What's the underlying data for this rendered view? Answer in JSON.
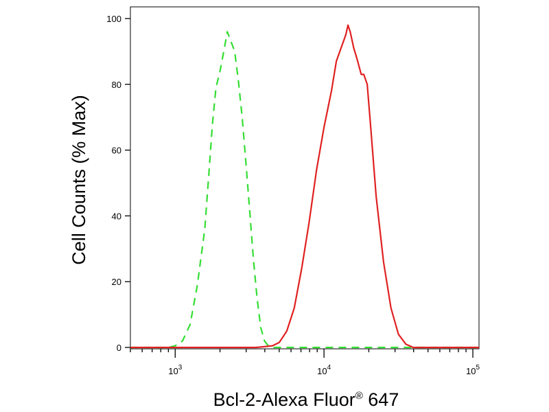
{
  "chart_data": {
    "type": "line",
    "title": "",
    "xlabel": "Bcl-2-Alexa Fluor",
    "xlabel_mark": "®",
    "xlabel_suffix": " 647",
    "ylabel": "Cell Counts (% Max)",
    "x_scale": "log",
    "xlim": [
      500,
      110000
    ],
    "ylim": [
      0,
      100
    ],
    "y_ticks": [
      0,
      20,
      40,
      60,
      80,
      100
    ],
    "y_tick_labels": [
      "0",
      "20",
      "40",
      "60",
      "80",
      "100"
    ],
    "x_major_ticks": [
      {
        "value": 1000,
        "base": "10",
        "exp": "3"
      },
      {
        "value": 10000,
        "base": "10",
        "exp": "4"
      },
      {
        "value": 100000,
        "base": "10",
        "exp": "5"
      }
    ],
    "grid": false,
    "legend": "none",
    "series": [
      {
        "style": "dashed",
        "color": "#33dd33",
        "x": [
          500,
          900,
          1000,
          1120,
          1260,
          1410,
          1580,
          1680,
          1780,
          1880,
          2000,
          2120,
          2240,
          2370,
          2510,
          2660,
          2820,
          2990,
          3160,
          3350,
          3550,
          3760,
          3980,
          4220,
          4470,
          5000,
          6000,
          10000,
          20000,
          110000
        ],
        "y": [
          0,
          0,
          0.5,
          2,
          7,
          19,
          36,
          52,
          68,
          79,
          84,
          90,
          96,
          93,
          90,
          81,
          70,
          56,
          42,
          27,
          15,
          6,
          2,
          0.5,
          0,
          0,
          0,
          0,
          0,
          0
        ]
      },
      {
        "style": "solid",
        "color": "#e02020",
        "x": [
          500,
          3500,
          4500,
          5000,
          5620,
          6310,
          7080,
          7940,
          8910,
          10000,
          11220,
          12100,
          13000,
          14000,
          14500,
          15000,
          15850,
          16600,
          17780,
          18500,
          19500,
          20500,
          22390,
          25120,
          28180,
          31620,
          35480,
          39810,
          44670,
          110000
        ],
        "y": [
          0,
          0,
          0.5,
          1.5,
          5,
          12,
          24,
          38,
          54,
          67,
          78,
          87,
          91,
          95,
          98,
          96,
          91,
          88,
          83,
          83,
          80,
          68,
          46,
          26,
          12,
          4,
          1,
          0,
          0,
          0
        ]
      }
    ]
  }
}
